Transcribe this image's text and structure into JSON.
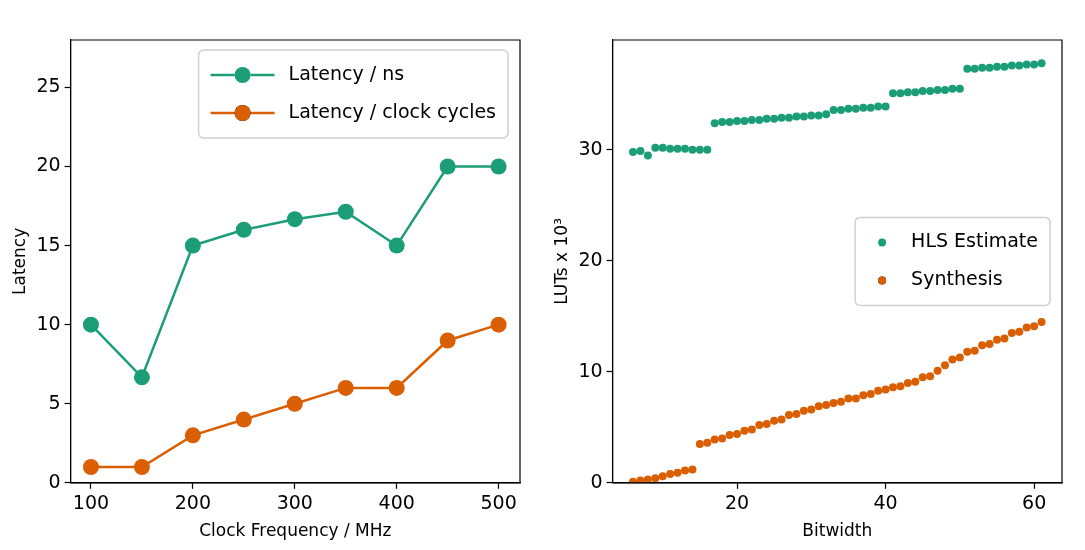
{
  "chart_data": [
    {
      "type": "line",
      "xlabel": "Clock Frequency / MHz",
      "ylabel": "Latency",
      "x": [
        100,
        150,
        200,
        250,
        300,
        350,
        400,
        450,
        500
      ],
      "xlim": [
        80,
        521
      ],
      "xticks": [
        100,
        200,
        300,
        400,
        500
      ],
      "ylim": [
        0,
        28
      ],
      "yticks": [
        0,
        5,
        10,
        15,
        20,
        25
      ],
      "series": [
        {
          "name": "Latency / ns",
          "color": "#1b9e77",
          "values": [
            10,
            6.67,
            15,
            16,
            16.67,
            17.14,
            15,
            20,
            20
          ]
        },
        {
          "name": "Latency / clock cycles",
          "color": "#d95f02",
          "values": [
            1,
            1,
            3,
            4,
            5,
            6,
            6,
            9,
            10
          ]
        }
      ],
      "marker": "circle",
      "line_style": "solid",
      "legend": "top right",
      "grid": false
    },
    {
      "type": "scatter",
      "xlabel": "Bitwidth",
      "ylabel": "LUTs x 10³",
      "x": [
        6,
        7,
        8,
        9,
        10,
        11,
        12,
        13,
        14,
        15,
        16,
        17,
        18,
        19,
        20,
        21,
        22,
        23,
        24,
        25,
        26,
        27,
        28,
        29,
        30,
        31,
        32,
        33,
        34,
        35,
        36,
        37,
        38,
        39,
        40,
        41,
        42,
        43,
        44,
        45,
        46,
        47,
        48,
        49,
        50,
        51,
        52,
        53,
        54,
        55,
        56,
        57,
        58,
        59,
        60,
        61
      ],
      "xlim": [
        3.25,
        63.75
      ],
      "xticks": [
        20,
        40,
        60
      ],
      "ylim": [
        0,
        39.9
      ],
      "yticks": [
        0,
        10,
        20,
        30
      ],
      "series": [
        {
          "name": "HLS Estimate",
          "color": "#1b9e77",
          "values": [
            29.8,
            29.9,
            29.5,
            30.2,
            30.2,
            30.1,
            30.1,
            30.1,
            30.0,
            30.0,
            30.0,
            32.4,
            32.5,
            32.5,
            32.6,
            32.6,
            32.7,
            32.7,
            32.8,
            32.8,
            32.9,
            32.9,
            33.0,
            33.0,
            33.1,
            33.1,
            33.2,
            33.6,
            33.6,
            33.7,
            33.7,
            33.8,
            33.8,
            33.9,
            33.9,
            35.1,
            35.1,
            35.2,
            35.2,
            35.3,
            35.3,
            35.4,
            35.4,
            35.5,
            35.5,
            37.3,
            37.3,
            37.4,
            37.4,
            37.5,
            37.5,
            37.6,
            37.6,
            37.7,
            37.7,
            37.8
          ]
        },
        {
          "name": "Synthesis",
          "color": "#d95f02",
          "values": [
            0.1,
            0.2,
            0.3,
            0.4,
            0.6,
            0.8,
            0.9,
            1.1,
            1.2,
            3.5,
            3.6,
            3.9,
            4.0,
            4.3,
            4.4,
            4.7,
            4.8,
            5.2,
            5.3,
            5.6,
            5.7,
            6.1,
            6.2,
            6.5,
            6.6,
            6.9,
            7.0,
            7.2,
            7.3,
            7.6,
            7.6,
            7.9,
            8.0,
            8.3,
            8.4,
            8.6,
            8.7,
            9.0,
            9.1,
            9.5,
            9.6,
            10.1,
            10.6,
            11.1,
            11.3,
            11.8,
            11.9,
            12.4,
            12.5,
            12.9,
            13.0,
            13.5,
            13.6,
            14.0,
            14.1,
            14.5
          ]
        }
      ],
      "marker": "circle",
      "legend": "right",
      "grid": false
    }
  ]
}
